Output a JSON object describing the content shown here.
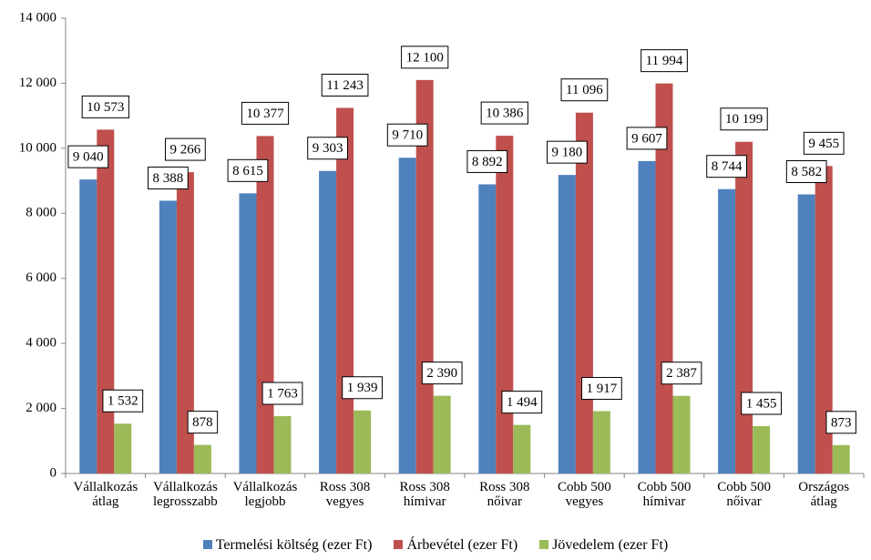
{
  "chart_data": {
    "type": "bar",
    "categories": [
      "Vállalkozás\nátlag",
      "Vállalkozás\nlegrosszabb",
      "Vállalkozás\nlegjobb",
      "Ross 308\nvegyes",
      "Ross 308\nhímivar",
      "Ross 308\nnőivar",
      "Cobb 500\nvegyes",
      "Cobb 500\nhímivar",
      "Cobb 500\nnőivar",
      "Országos\nátlag"
    ],
    "series": [
      {
        "name": "Termelési költség (ezer Ft)",
        "color": "#4f81bd",
        "values": [
          9040,
          8388,
          8615,
          9303,
          9710,
          8892,
          9180,
          9607,
          8744,
          8582
        ],
        "value_labels": [
          "9 040",
          "8 388",
          "8 615",
          "9 303",
          "9 710",
          "8 892",
          "9 180",
          "9 607",
          "8 744",
          "8 582"
        ]
      },
      {
        "name": "Árbevétel (ezer Ft)",
        "color": "#c0504d",
        "values": [
          10573,
          9266,
          10377,
          11243,
          12100,
          10386,
          11096,
          11994,
          10199,
          9455
        ],
        "value_labels": [
          "10 573",
          "9 266",
          "10 377",
          "11 243",
          "12 100",
          "10 386",
          "11 096",
          "11 994",
          "10 199",
          "9 455"
        ]
      },
      {
        "name": "Jövedelem (ezer Ft)",
        "color": "#9bbb59",
        "values": [
          1532,
          878,
          1763,
          1939,
          2390,
          1494,
          1917,
          2387,
          1455,
          873
        ],
        "value_labels": [
          "1 532",
          "878",
          "1 763",
          "1 939",
          "2 390",
          "1 494",
          "1 917",
          "2 387",
          "1 455",
          "873"
        ]
      }
    ],
    "ylim": [
      0,
      14000
    ],
    "yticks": [
      0,
      {
        "value": 2000,
        "label": "2 000"
      },
      {
        "value": 4000,
        "label": "4 000"
      },
      {
        "value": 6000,
        "label": "6 000"
      },
      {
        "value": 8000,
        "label": "8 000"
      },
      {
        "value": 10000,
        "label": "10 000"
      },
      {
        "value": 12000,
        "label": "12 000"
      },
      {
        "value": 14000,
        "label": "14 000"
      }
    ],
    "grid": false,
    "legend": "bottom"
  }
}
